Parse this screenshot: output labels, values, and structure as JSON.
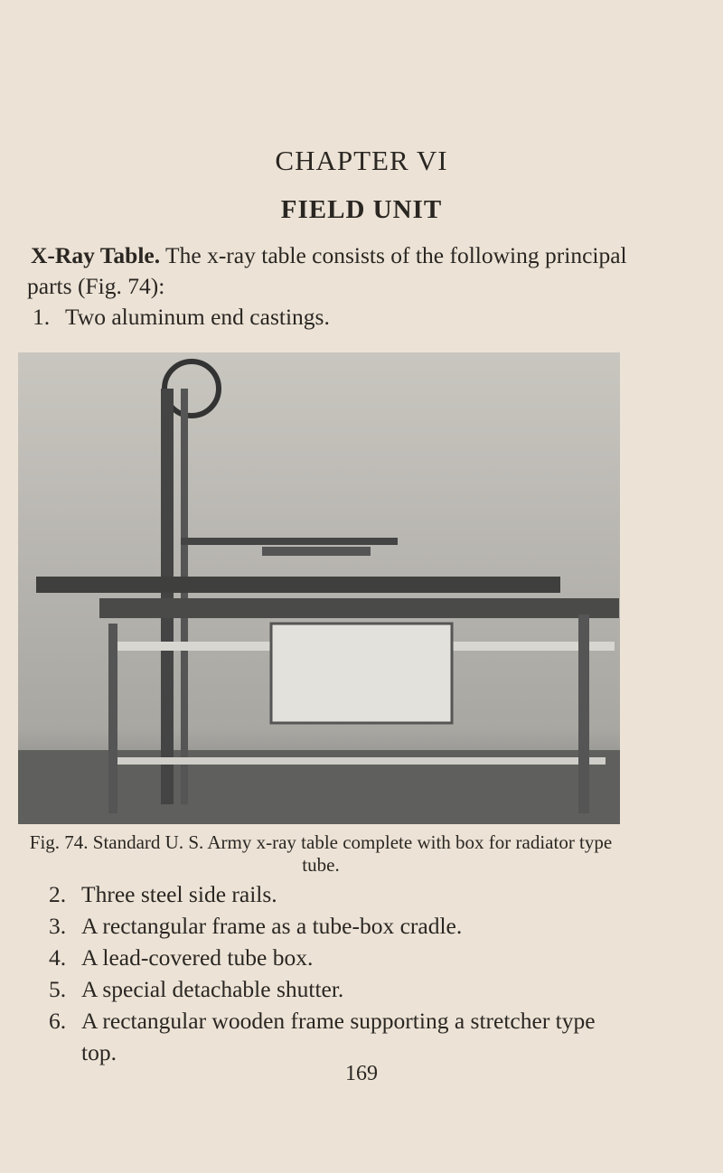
{
  "chapter": "CHAPTER VI",
  "title": "FIELD UNIT",
  "intro": {
    "heading": "X-Ray Table.",
    "text": "The x-ray table consists of the following principal parts (Fig. 74):"
  },
  "items": [
    {
      "number": "1.",
      "text": "Two aluminum end castings."
    },
    {
      "number": "2.",
      "text": "Three steel side rails."
    },
    {
      "number": "3.",
      "text": "A rectangular frame as a tube-box cradle."
    },
    {
      "number": "4.",
      "text": "A lead-covered tube box."
    },
    {
      "number": "5.",
      "text": "A special detachable shutter."
    },
    {
      "number": "6.",
      "text": "A rectangular wooden frame supporting a stretcher type top."
    }
  ],
  "figure": {
    "label": "Fig. 74.",
    "caption": "Standard U. S. Army x-ray table complete with box for radiator type tube."
  },
  "page_number": "169"
}
